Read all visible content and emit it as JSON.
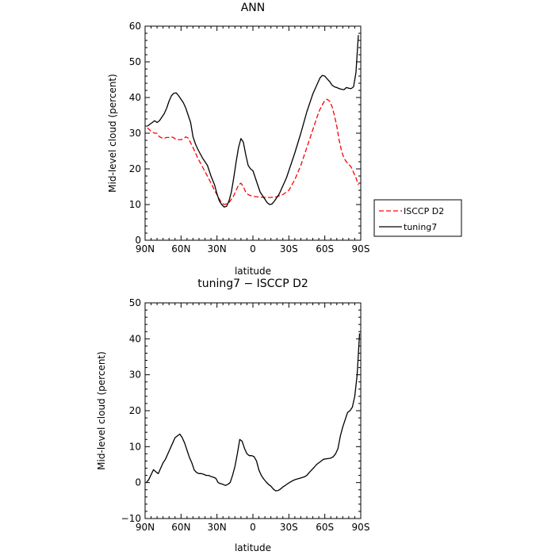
{
  "chart_data": [
    {
      "type": "line",
      "title": "ANN",
      "xlabel": "latitude",
      "ylabel": "Mid-level cloud (percent)",
      "xlim": [
        90,
        -90
      ],
      "ylim": [
        0,
        60
      ],
      "x_ticks": [
        90,
        60,
        30,
        0,
        -30,
        -60,
        -90
      ],
      "x_tick_labels": [
        "90N",
        "60N",
        "30N",
        "0",
        "30S",
        "60S",
        "90S"
      ],
      "y_ticks": [
        0,
        10,
        20,
        30,
        40,
        50,
        60
      ],
      "y_tick_labels": [
        "0",
        "10",
        "20",
        "30",
        "40",
        "50",
        "60"
      ],
      "legend_position": "right",
      "series": [
        {
          "name": "ISCCP D2",
          "color": "#ff0000",
          "dash": "dashed",
          "x": [
            88,
            85,
            82,
            80,
            78,
            75,
            72,
            70,
            68,
            66,
            64,
            62,
            60,
            58,
            56,
            54,
            50,
            46,
            42,
            38,
            35,
            32,
            28,
            26,
            24,
            22,
            20,
            18,
            16,
            14,
            12,
            10,
            8,
            6,
            4,
            2,
            0,
            -5,
            -10,
            -15,
            -20,
            -25,
            -30,
            -35,
            -40,
            -45,
            -50,
            -55,
            -58,
            -60,
            -62,
            -64,
            -66,
            -68,
            -70,
            -72,
            -74,
            -76,
            -78,
            -80,
            -82,
            -84,
            -86,
            -88
          ],
          "y": [
            31.5,
            30.5,
            30,
            30,
            29,
            28.5,
            28.8,
            28.8,
            29,
            28.7,
            28.2,
            28.2,
            28.2,
            28.4,
            29,
            28.6,
            26,
            23,
            20.5,
            18,
            16,
            14,
            11.5,
            10.5,
            10,
            10.2,
            10.5,
            11.5,
            12.5,
            14,
            15.5,
            16,
            15,
            13.5,
            12.8,
            12.5,
            12.3,
            12.1,
            12,
            12,
            12.2,
            12.8,
            14,
            17,
            21,
            26,
            31,
            36,
            38,
            39.2,
            39.5,
            39,
            37.5,
            35,
            32,
            28,
            25,
            23,
            22,
            21.3,
            20.5,
            19,
            17.5,
            15.5
          ]
        },
        {
          "name": "tuning7",
          "color": "#000000",
          "dash": "solid",
          "x": [
            88,
            86,
            84,
            82,
            80,
            78,
            76,
            74,
            72,
            70,
            68,
            66,
            64,
            62,
            60,
            58,
            56,
            54,
            52,
            50,
            48,
            46,
            42,
            38,
            35,
            32,
            30,
            28,
            26,
            24,
            22,
            20,
            18,
            16,
            14,
            12,
            10,
            8,
            6,
            4,
            2,
            0,
            -2,
            -4,
            -6,
            -8,
            -10,
            -12,
            -14,
            -16,
            -18,
            -20,
            -22,
            -24,
            -26,
            -28,
            -30,
            -35,
            -40,
            -45,
            -50,
            -54,
            -56,
            -58,
            -60,
            -62,
            -64,
            -66,
            -68,
            -70,
            -72,
            -74,
            -76,
            -78,
            -80,
            -82,
            -84,
            -86,
            -88
          ],
          "y": [
            32,
            32.5,
            33,
            33.5,
            33,
            33.5,
            34.5,
            35.5,
            37,
            39,
            40.5,
            41.2,
            41.3,
            40.5,
            39.5,
            38.5,
            37,
            35,
            33,
            29,
            27,
            25.5,
            23,
            21,
            18,
            15.5,
            13,
            11,
            10,
            9.3,
            9.5,
            11,
            13.5,
            17.5,
            22,
            26,
            28.5,
            27.5,
            24,
            21,
            20,
            19.5,
            17.5,
            15.5,
            13.5,
            12.5,
            11.5,
            10.5,
            10,
            10.2,
            11,
            12,
            13,
            14.5,
            16,
            17.5,
            19.5,
            24.5,
            30,
            36,
            41,
            44,
            45.5,
            46.2,
            46,
            45.2,
            44.5,
            43.5,
            43,
            42.8,
            42.5,
            42.3,
            42.2,
            42.8,
            42.6,
            42.5,
            43,
            47,
            57.5
          ]
        }
      ]
    },
    {
      "type": "line",
      "title": "tuning7 − ISCCP D2",
      "xlabel": "latitude",
      "ylabel": "Mid-level cloud (percent)",
      "xlim": [
        90,
        -90
      ],
      "ylim": [
        -10,
        50
      ],
      "x_ticks": [
        90,
        60,
        30,
        0,
        -30,
        -60,
        -90
      ],
      "x_tick_labels": [
        "90N",
        "60N",
        "30N",
        "0",
        "30S",
        "60S",
        "90S"
      ],
      "y_ticks": [
        -10,
        0,
        10,
        20,
        30,
        40,
        50
      ],
      "y_tick_labels": [
        "−10",
        "0",
        "10",
        "20",
        "30",
        "40",
        "50"
      ],
      "series": [
        {
          "color": "#000000",
          "dash": "solid",
          "x": [
            89,
            87,
            85,
            83,
            81,
            79,
            77,
            75,
            73,
            71,
            69,
            67,
            65,
            63,
            61,
            59,
            57,
            55,
            53,
            51,
            49,
            47,
            45,
            43,
            41,
            39,
            37,
            35,
            33,
            31,
            29,
            27,
            25,
            23,
            21,
            19,
            17,
            15,
            13,
            11,
            9,
            7,
            5,
            3,
            1,
            -1,
            -3,
            -5,
            -7,
            -9,
            -11,
            -13,
            -15,
            -17,
            -19,
            -21,
            -23,
            -25,
            -27,
            -29,
            -31,
            -33,
            -35,
            -37,
            -39,
            -41,
            -43,
            -45,
            -47,
            -49,
            -51,
            -53,
            -55,
            -57,
            -59,
            -61,
            -63,
            -65,
            -67,
            -69,
            -71,
            -73,
            -75,
            -77,
            -79,
            -81,
            -83,
            -85,
            -87,
            -89
          ],
          "y": [
            0,
            0.8,
            2.2,
            3.6,
            3,
            2.5,
            4,
            5.5,
            6.5,
            8,
            9.5,
            11,
            12.5,
            13,
            13.5,
            12.5,
            11,
            9,
            7,
            5.5,
            3.5,
            2.8,
            2.5,
            2.5,
            2.3,
            2,
            2,
            1.7,
            1.5,
            1.2,
            0,
            -0.3,
            -0.5,
            -0.8,
            -0.5,
            0,
            2,
            4.5,
            8,
            12,
            11.5,
            9.5,
            8,
            7.5,
            7.5,
            7.2,
            6,
            3.5,
            2,
            1,
            0.2,
            -0.5,
            -1,
            -1.8,
            -2.3,
            -2.2,
            -1.8,
            -1.2,
            -0.8,
            -0.3,
            0.1,
            0.5,
            0.8,
            1,
            1.2,
            1.4,
            1.6,
            2,
            2.8,
            3.5,
            4.2,
            5,
            5.5,
            6,
            6.5,
            6.6,
            6.7,
            6.8,
            7.2,
            8,
            9.5,
            13,
            15.5,
            17.5,
            19.5,
            20,
            21,
            24,
            30,
            41.5
          ]
        }
      ]
    }
  ]
}
